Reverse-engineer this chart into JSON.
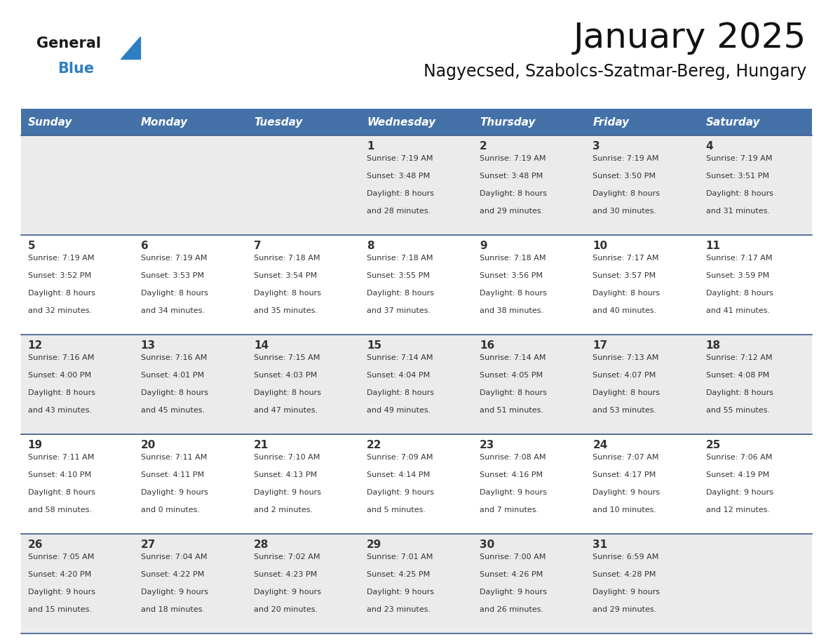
{
  "title": "January 2025",
  "subtitle": "Nagyecsed, Szabolcs-Szatmar-Bereg, Hungary",
  "days_of_week": [
    "Sunday",
    "Monday",
    "Tuesday",
    "Wednesday",
    "Thursday",
    "Friday",
    "Saturday"
  ],
  "header_bg": "#4472a8",
  "header_text": "#ffffff",
  "row_bg": [
    "#ebebeb",
    "#ffffff",
    "#ebebeb",
    "#ffffff",
    "#ebebeb"
  ],
  "separator_color": "#3a5a8a",
  "text_color": "#333333",
  "day_number_color": "#333333",
  "calendar_data": [
    {
      "day": 1,
      "col": 3,
      "row": 0,
      "sunrise": "7:19 AM",
      "sunset": "3:48 PM",
      "daylight": "8 hours and 28 minutes"
    },
    {
      "day": 2,
      "col": 4,
      "row": 0,
      "sunrise": "7:19 AM",
      "sunset": "3:48 PM",
      "daylight": "8 hours and 29 minutes"
    },
    {
      "day": 3,
      "col": 5,
      "row": 0,
      "sunrise": "7:19 AM",
      "sunset": "3:50 PM",
      "daylight": "8 hours and 30 minutes"
    },
    {
      "day": 4,
      "col": 6,
      "row": 0,
      "sunrise": "7:19 AM",
      "sunset": "3:51 PM",
      "daylight": "8 hours and 31 minutes"
    },
    {
      "day": 5,
      "col": 0,
      "row": 1,
      "sunrise": "7:19 AM",
      "sunset": "3:52 PM",
      "daylight": "8 hours and 32 minutes"
    },
    {
      "day": 6,
      "col": 1,
      "row": 1,
      "sunrise": "7:19 AM",
      "sunset": "3:53 PM",
      "daylight": "8 hours and 34 minutes"
    },
    {
      "day": 7,
      "col": 2,
      "row": 1,
      "sunrise": "7:18 AM",
      "sunset": "3:54 PM",
      "daylight": "8 hours and 35 minutes"
    },
    {
      "day": 8,
      "col": 3,
      "row": 1,
      "sunrise": "7:18 AM",
      "sunset": "3:55 PM",
      "daylight": "8 hours and 37 minutes"
    },
    {
      "day": 9,
      "col": 4,
      "row": 1,
      "sunrise": "7:18 AM",
      "sunset": "3:56 PM",
      "daylight": "8 hours and 38 minutes"
    },
    {
      "day": 10,
      "col": 5,
      "row": 1,
      "sunrise": "7:17 AM",
      "sunset": "3:57 PM",
      "daylight": "8 hours and 40 minutes"
    },
    {
      "day": 11,
      "col": 6,
      "row": 1,
      "sunrise": "7:17 AM",
      "sunset": "3:59 PM",
      "daylight": "8 hours and 41 minutes"
    },
    {
      "day": 12,
      "col": 0,
      "row": 2,
      "sunrise": "7:16 AM",
      "sunset": "4:00 PM",
      "daylight": "8 hours and 43 minutes"
    },
    {
      "day": 13,
      "col": 1,
      "row": 2,
      "sunrise": "7:16 AM",
      "sunset": "4:01 PM",
      "daylight": "8 hours and 45 minutes"
    },
    {
      "day": 14,
      "col": 2,
      "row": 2,
      "sunrise": "7:15 AM",
      "sunset": "4:03 PM",
      "daylight": "8 hours and 47 minutes"
    },
    {
      "day": 15,
      "col": 3,
      "row": 2,
      "sunrise": "7:14 AM",
      "sunset": "4:04 PM",
      "daylight": "8 hours and 49 minutes"
    },
    {
      "day": 16,
      "col": 4,
      "row": 2,
      "sunrise": "7:14 AM",
      "sunset": "4:05 PM",
      "daylight": "8 hours and 51 minutes"
    },
    {
      "day": 17,
      "col": 5,
      "row": 2,
      "sunrise": "7:13 AM",
      "sunset": "4:07 PM",
      "daylight": "8 hours and 53 minutes"
    },
    {
      "day": 18,
      "col": 6,
      "row": 2,
      "sunrise": "7:12 AM",
      "sunset": "4:08 PM",
      "daylight": "8 hours and 55 minutes"
    },
    {
      "day": 19,
      "col": 0,
      "row": 3,
      "sunrise": "7:11 AM",
      "sunset": "4:10 PM",
      "daylight": "8 hours and 58 minutes"
    },
    {
      "day": 20,
      "col": 1,
      "row": 3,
      "sunrise": "7:11 AM",
      "sunset": "4:11 PM",
      "daylight": "9 hours and 0 minutes"
    },
    {
      "day": 21,
      "col": 2,
      "row": 3,
      "sunrise": "7:10 AM",
      "sunset": "4:13 PM",
      "daylight": "9 hours and 2 minutes"
    },
    {
      "day": 22,
      "col": 3,
      "row": 3,
      "sunrise": "7:09 AM",
      "sunset": "4:14 PM",
      "daylight": "9 hours and 5 minutes"
    },
    {
      "day": 23,
      "col": 4,
      "row": 3,
      "sunrise": "7:08 AM",
      "sunset": "4:16 PM",
      "daylight": "9 hours and 7 minutes"
    },
    {
      "day": 24,
      "col": 5,
      "row": 3,
      "sunrise": "7:07 AM",
      "sunset": "4:17 PM",
      "daylight": "9 hours and 10 minutes"
    },
    {
      "day": 25,
      "col": 6,
      "row": 3,
      "sunrise": "7:06 AM",
      "sunset": "4:19 PM",
      "daylight": "9 hours and 12 minutes"
    },
    {
      "day": 26,
      "col": 0,
      "row": 4,
      "sunrise": "7:05 AM",
      "sunset": "4:20 PM",
      "daylight": "9 hours and 15 minutes"
    },
    {
      "day": 27,
      "col": 1,
      "row": 4,
      "sunrise": "7:04 AM",
      "sunset": "4:22 PM",
      "daylight": "9 hours and 18 minutes"
    },
    {
      "day": 28,
      "col": 2,
      "row": 4,
      "sunrise": "7:02 AM",
      "sunset": "4:23 PM",
      "daylight": "9 hours and 20 minutes"
    },
    {
      "day": 29,
      "col": 3,
      "row": 4,
      "sunrise": "7:01 AM",
      "sunset": "4:25 PM",
      "daylight": "9 hours and 23 minutes"
    },
    {
      "day": 30,
      "col": 4,
      "row": 4,
      "sunrise": "7:00 AM",
      "sunset": "4:26 PM",
      "daylight": "9 hours and 26 minutes"
    },
    {
      "day": 31,
      "col": 5,
      "row": 4,
      "sunrise": "6:59 AM",
      "sunset": "4:28 PM",
      "daylight": "9 hours and 29 minutes"
    }
  ],
  "num_rows": 5,
  "logo_general_color": "#1a1a1a",
  "logo_blue_color": "#2e7fc1",
  "logo_triangle_color": "#2e7fc1"
}
